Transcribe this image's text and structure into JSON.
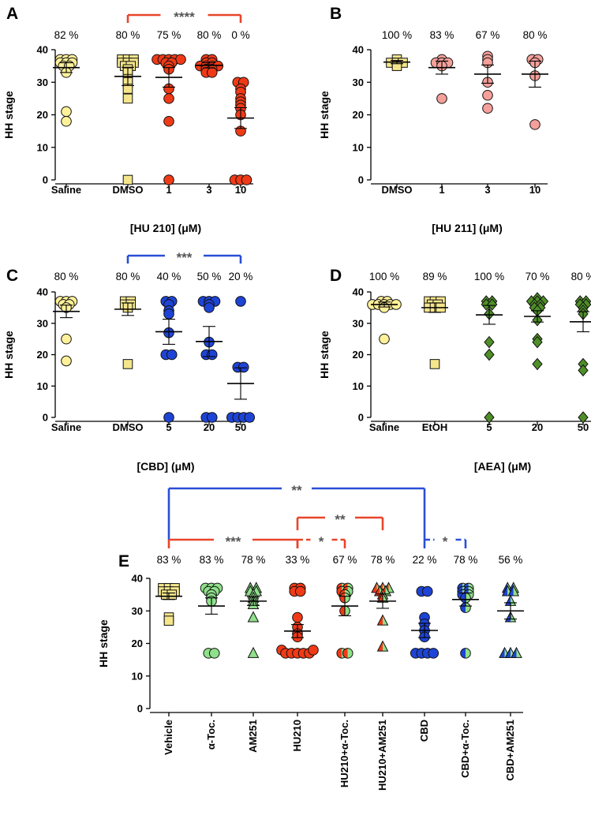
{
  "chart_data": [
    {
      "panel": "A",
      "type": "scatter",
      "ylabel": "HH stage",
      "xlabel": "[HU 210] (μM)",
      "ylim": [
        0,
        40
      ],
      "yticks": [
        0,
        10,
        20,
        30,
        40
      ],
      "groups": [
        {
          "label": "Saline",
          "pct": "82 %",
          "marker": "circle",
          "colors": [
            "#fff19a"
          ],
          "mean": 34.5,
          "sem": 1.5,
          "values": [
            37,
            37,
            37,
            36,
            36,
            36,
            35,
            35,
            33,
            21,
            18
          ]
        },
        {
          "label": "DMSO",
          "pct": "80 %",
          "marker": "square",
          "colors": [
            "#f5e68c"
          ],
          "mean": 31.8,
          "sem": 2.8,
          "values": [
            37,
            37,
            37,
            36,
            36,
            36,
            35,
            35,
            34,
            33,
            31,
            30,
            28,
            25,
            0
          ]
        },
        {
          "label": "1",
          "pct": "75 %",
          "marker": "circle",
          "colors": [
            "#f03a17"
          ],
          "mean": 31.5,
          "sem": 3.0,
          "values": [
            37,
            37,
            37,
            37,
            37,
            36,
            36,
            35,
            34,
            28,
            25,
            18,
            0
          ]
        },
        {
          "label": "3",
          "pct": "80 %",
          "marker": "circle",
          "colors": [
            "#f03a17"
          ],
          "mean": 35.2,
          "sem": 0.8,
          "values": [
            37,
            37,
            36,
            36,
            35,
            35,
            35,
            35,
            34,
            34,
            33,
            33
          ]
        },
        {
          "label": "10",
          "pct": "0 %",
          "marker": "circle",
          "colors": [
            "#f03a17"
          ],
          "mean": 19.0,
          "sem": 3.2,
          "values": [
            30,
            30,
            28,
            27,
            25,
            24,
            23,
            22,
            20,
            15,
            0,
            0,
            0
          ]
        }
      ],
      "brackets": [
        {
          "from": 1,
          "to": 4,
          "label": "****",
          "color": "#e8452a"
        }
      ]
    },
    {
      "panel": "B",
      "type": "scatter",
      "ylabel": "HH stage",
      "xlabel": "[HU 211] (μM)",
      "ylim": [
        0,
        40
      ],
      "yticks": [
        0,
        10,
        20,
        30,
        40
      ],
      "groups": [
        {
          "label": "DMSO",
          "pct": "100 %",
          "marker": "square",
          "colors": [
            "#f5e68c"
          ],
          "mean": 36.2,
          "sem": 0.5,
          "values": [
            37,
            36,
            36,
            36,
            35
          ]
        },
        {
          "label": "1",
          "pct": "83 %",
          "marker": "circle",
          "colors": [
            "#f5a09a"
          ],
          "mean": 34.5,
          "sem": 2.0,
          "values": [
            37,
            36,
            36,
            36,
            35,
            25
          ]
        },
        {
          "label": "3",
          "pct": "67 %",
          "marker": "circle",
          "colors": [
            "#f5a09a"
          ],
          "mean": 32.5,
          "sem": 2.8,
          "values": [
            38,
            37,
            36,
            30,
            26,
            22
          ]
        },
        {
          "label": "10",
          "pct": "80 %",
          "marker": "circle",
          "colors": [
            "#f5a09a"
          ],
          "mean": 32.5,
          "sem": 4.0,
          "values": [
            37,
            37,
            36,
            32,
            17
          ]
        }
      ],
      "brackets": []
    },
    {
      "panel": "C",
      "type": "scatter",
      "ylabel": "HH stage",
      "xlabel": "[CBD] (μM)",
      "ylim": [
        0,
        40
      ],
      "yticks": [
        0,
        10,
        20,
        30,
        40
      ],
      "groups": [
        {
          "label": "Saline",
          "pct": "80 %",
          "marker": "circle",
          "colors": [
            "#fff19a"
          ],
          "mean": 33.8,
          "sem": 2.0,
          "values": [
            37,
            37,
            37,
            36,
            36,
            35,
            25,
            18
          ]
        },
        {
          "label": "DMSO",
          "pct": "80 %",
          "marker": "square",
          "colors": [
            "#f5e68c"
          ],
          "mean": 34.5,
          "sem": 2.0,
          "values": [
            37,
            37,
            36,
            36,
            35,
            17
          ]
        },
        {
          "label": "5",
          "pct": "40 %",
          "marker": "circle",
          "colors": [
            "#1e44d6"
          ],
          "mean": 27.3,
          "sem": 4.0,
          "values": [
            37,
            37,
            36,
            34,
            33,
            27,
            20,
            20,
            0
          ]
        },
        {
          "label": "20",
          "pct": "50 %",
          "marker": "circle",
          "colors": [
            "#1e44d6"
          ],
          "mean": 24.2,
          "sem": 4.8,
          "values": [
            37,
            37,
            37,
            36,
            35,
            24,
            20,
            20,
            0,
            0
          ]
        },
        {
          "label": "50",
          "pct": "20 %",
          "marker": "circle",
          "colors": [
            "#1e44d6"
          ],
          "mean": 10.8,
          "sem": 5.0,
          "values": [
            37,
            16,
            16,
            0,
            0,
            0,
            0
          ]
        }
      ],
      "brackets": [
        {
          "from": 1,
          "to": 4,
          "label": "***",
          "color": "#2a4fd6"
        }
      ]
    },
    {
      "panel": "D",
      "type": "scatter",
      "ylabel": "HH stage",
      "xlabel": "[AEA] (μM)",
      "ylim": [
        0,
        40
      ],
      "yticks": [
        0,
        10,
        20,
        30,
        40
      ],
      "groups": [
        {
          "label": "Saline",
          "pct": "100 %",
          "marker": "circle",
          "colors": [
            "#fff19a"
          ],
          "mean": 36.0,
          "sem": 0.8,
          "values": [
            37,
            37,
            36,
            36,
            36,
            36,
            36,
            35,
            25
          ]
        },
        {
          "label": "EtOH",
          "pct": "89 %",
          "marker": "square",
          "colors": [
            "#f5e68c"
          ],
          "mean": 35.0,
          "sem": 1.5,
          "values": [
            37,
            37,
            37,
            36,
            36,
            35,
            35,
            35,
            17
          ]
        },
        {
          "label": "5",
          "pct": "100 %",
          "marker": "diamond",
          "colors": [
            "#4f8f28"
          ],
          "mean": 32.7,
          "sem": 3.0,
          "values": [
            37,
            37,
            36,
            36,
            33,
            24,
            20,
            0
          ]
        },
        {
          "label": "20",
          "pct": "70 %",
          "marker": "diamond",
          "colors": [
            "#4f8f28"
          ],
          "mean": 32.2,
          "sem": 1.8,
          "values": [
            38,
            37,
            37,
            37,
            36,
            36,
            35,
            35,
            34,
            31,
            25,
            24,
            17
          ]
        },
        {
          "label": "50",
          "pct": "80 %",
          "marker": "diamond",
          "colors": [
            "#4f8f28"
          ],
          "mean": 30.5,
          "sem": 3.2,
          "values": [
            37,
            37,
            36,
            36,
            35,
            34,
            33,
            17,
            15,
            0
          ]
        }
      ],
      "brackets": []
    },
    {
      "panel": "E",
      "type": "scatter",
      "ylabel": "HH stage",
      "xlabel": "",
      "ylim": [
        0,
        40
      ],
      "yticks": [
        0,
        10,
        20,
        30,
        40
      ],
      "groups": [
        {
          "label": "Vehicle",
          "pct": "83 %",
          "marker": "square",
          "colors": [
            "#f5e68c"
          ],
          "mean": 34.5,
          "sem": 1.0,
          "values": [
            37,
            37,
            37,
            36,
            36,
            36,
            35,
            35,
            28,
            27
          ]
        },
        {
          "label": "α-Toc.",
          "pct": "83 %",
          "marker": "circle",
          "colors": [
            "#8fe08a"
          ],
          "mean": 31.5,
          "sem": 2.5,
          "values": [
            37,
            37,
            37,
            36,
            36,
            35,
            34,
            33,
            17,
            17
          ]
        },
        {
          "label": "AM251",
          "pct": "78 %",
          "marker": "triangle",
          "colors": [
            "#8fe08a"
          ],
          "mean": 33.0,
          "sem": 1.3,
          "values": [
            37,
            37,
            36,
            36,
            35,
            34,
            33,
            32,
            28,
            17
          ]
        },
        {
          "label": "HU210",
          "pct": "33 %",
          "marker": "circle",
          "colors": [
            "#f03a17"
          ],
          "mean": 23.8,
          "sem": 2.0,
          "values": [
            37,
            37,
            36,
            36,
            28,
            25,
            23,
            22,
            17,
            17,
            17,
            17,
            17,
            17,
            17
          ]
        },
        {
          "label": "HU210+α-Toc.",
          "pct": "67 %",
          "marker": "circle",
          "colors": [
            "#f03a17",
            "#8fe08a"
          ],
          "mean": 31.5,
          "sem": 3.0,
          "values": [
            37,
            37,
            36,
            36,
            35,
            34,
            30,
            17,
            17
          ]
        },
        {
          "label": "HU210+AM251",
          "pct": "78 %",
          "marker": "triangle",
          "colors": [
            "#f03a17",
            "#8fe08a"
          ],
          "mean": 33.0,
          "sem": 2.2,
          "values": [
            37,
            37,
            37,
            36,
            36,
            35,
            34,
            27,
            19
          ]
        },
        {
          "label": "CBD",
          "pct": "22 %",
          "marker": "circle",
          "colors": [
            "#1e44d6"
          ],
          "mean": 24.0,
          "sem": 2.2,
          "values": [
            36,
            36,
            28,
            26,
            24,
            22,
            17,
            17,
            17,
            17
          ]
        },
        {
          "label": "CBD+α-Toc.",
          "pct": "78 %",
          "marker": "circle",
          "colors": [
            "#1e44d6",
            "#8fe08a"
          ],
          "mean": 33.5,
          "sem": 2.0,
          "values": [
            37,
            37,
            36,
            36,
            35,
            35,
            34,
            31,
            17
          ]
        },
        {
          "label": "CBD+AM251",
          "pct": "56 %",
          "marker": "triangle",
          "colors": [
            "#1e44d6",
            "#8fe08a"
          ],
          "mean": 30.0,
          "sem": 2.5,
          "values": [
            37,
            37,
            36,
            36,
            33,
            28,
            17,
            17,
            17
          ]
        }
      ],
      "brackets": [
        {
          "from": 0,
          "to": 6,
          "label": "**",
          "color": "#2a4fd6",
          "level": 3,
          "style": "solid"
        },
        {
          "from": 3,
          "to": 5,
          "label": "**",
          "color": "#e8452a",
          "level": 2,
          "style": "solid"
        },
        {
          "from": 0,
          "to": 3,
          "label": "***",
          "color": "#e8452a",
          "level": 1,
          "style": "solid"
        },
        {
          "from": 3,
          "to": 4,
          "label": "*",
          "color": "#e8452a",
          "level": 1,
          "style": "dashed"
        },
        {
          "from": 6,
          "to": 7,
          "label": "*",
          "color": "#2a4fd6",
          "level": 1,
          "style": "dashed"
        }
      ]
    }
  ]
}
